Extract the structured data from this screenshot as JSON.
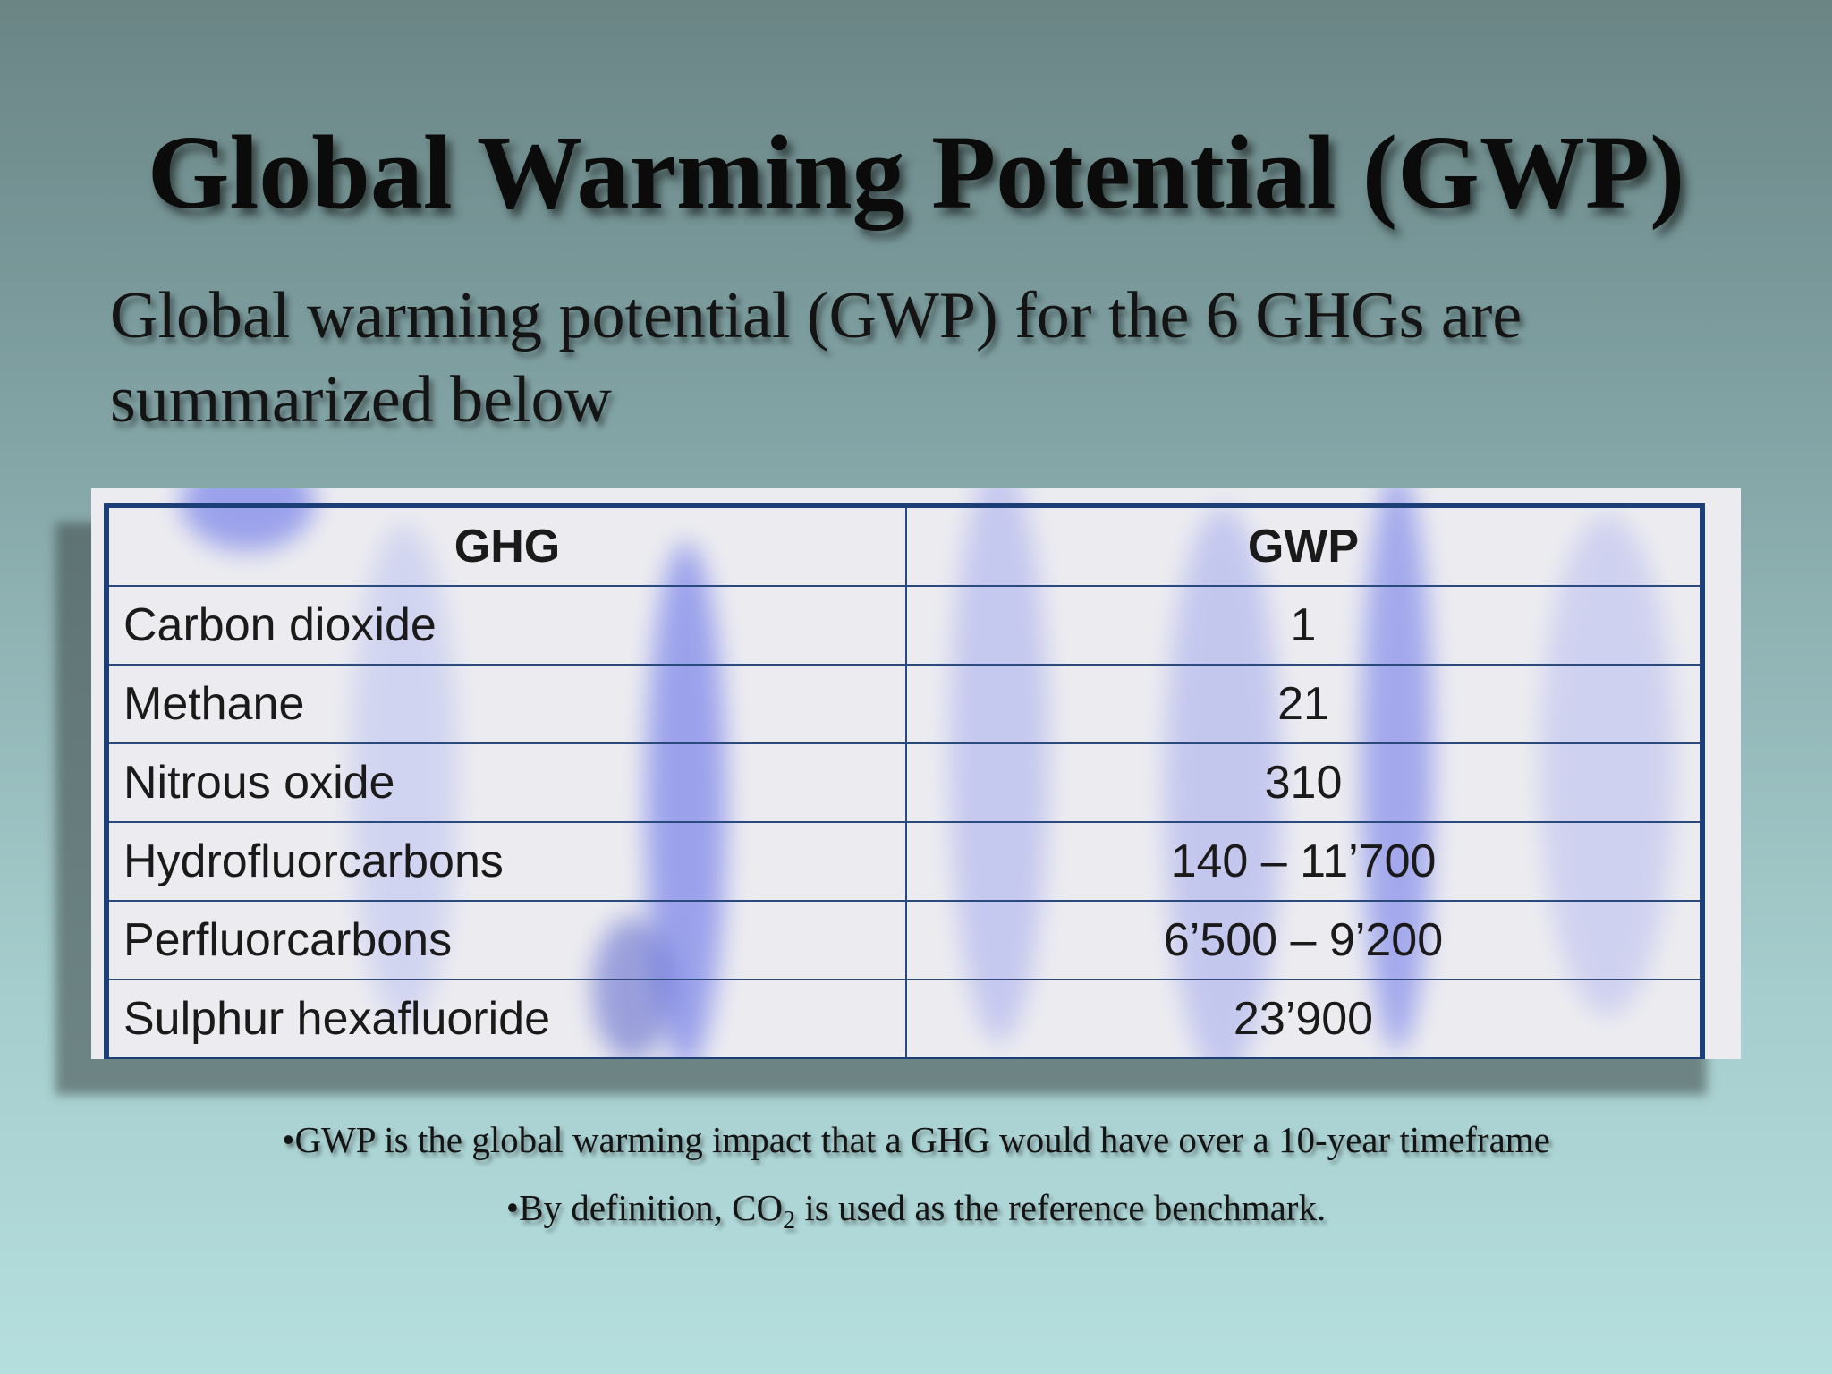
{
  "slide": {
    "title": "Global Warming Potential (GWP)",
    "subtitle": "Global warming potential (GWP) for the 6 GHGs are summarized below"
  },
  "table": {
    "headers": [
      "GHG",
      "GWP"
    ],
    "rows": [
      {
        "ghg": "Carbon dioxide",
        "gwp": "1"
      },
      {
        "ghg": "Methane",
        "gwp": "21"
      },
      {
        "ghg": "Nitrous oxide",
        "gwp": "310"
      },
      {
        "ghg": "Hydrofluorcarbons",
        "gwp": "140 – 11’700"
      },
      {
        "ghg": "Perfluorcarbons",
        "gwp": "6’500 – 9’200"
      },
      {
        "ghg": "Sulphur hexafluoride",
        "gwp": "23’900"
      }
    ]
  },
  "notes": {
    "note1": "•GWP is the global warming impact that a GHG would  have over a 10-year timeframe",
    "note2_prefix": "•By definition, CO",
    "note2_sub": "2",
    "note2_suffix": " is used as the reference benchmark."
  },
  "colors": {
    "table_border": "#1c3f78",
    "streak": "#5a66e8"
  }
}
